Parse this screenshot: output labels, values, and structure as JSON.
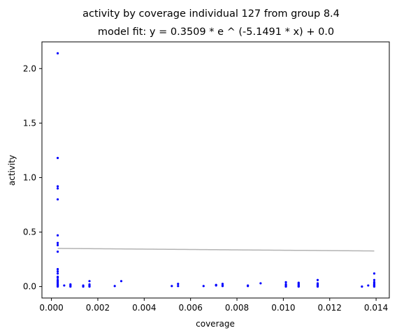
{
  "chart_data": {
    "type": "scatter",
    "title": "activity by coverage individual 127 from group 8.4",
    "subtitle": "model fit: y = 0.3509 * e ^ (-5.1491 * x) + 0.0",
    "xlabel": "coverage",
    "ylabel": "activity",
    "xlim": [
      -0.00041,
      0.01457
    ],
    "ylim": [
      -0.105,
      2.245
    ],
    "x_ticks": [
      0.0,
      0.002,
      0.004,
      0.006,
      0.008,
      0.01,
      0.012,
      0.014
    ],
    "x_tick_labels": [
      "0.000",
      "0.002",
      "0.004",
      "0.006",
      "0.008",
      "0.010",
      "0.012",
      "0.014"
    ],
    "y_ticks": [
      0.0,
      0.5,
      1.0,
      1.5,
      2.0
    ],
    "y_tick_labels": [
      "0.0",
      "0.5",
      "1.0",
      "1.5",
      "2.0"
    ],
    "grid": false,
    "colors": {
      "points": "#0000ff",
      "fit": "#b3b3b3"
    },
    "fit": {
      "a": 0.3509,
      "b": -5.1491,
      "c": 0.0,
      "x_range": [
        0.00027,
        0.01392
      ]
    },
    "points": [
      [
        0.00027,
        2.14
      ],
      [
        0.00027,
        1.18
      ],
      [
        0.00027,
        0.92
      ],
      [
        0.00027,
        0.9
      ],
      [
        0.00027,
        0.8
      ],
      [
        0.00027,
        0.47
      ],
      [
        0.00027,
        0.4
      ],
      [
        0.00027,
        0.38
      ],
      [
        0.00027,
        0.32
      ],
      [
        0.00027,
        0.16
      ],
      [
        0.00027,
        0.14
      ],
      [
        0.00027,
        0.12
      ],
      [
        0.00027,
        0.09
      ],
      [
        0.00027,
        0.08
      ],
      [
        0.00027,
        0.06
      ],
      [
        0.00027,
        0.05
      ],
      [
        0.00027,
        0.04
      ],
      [
        0.00027,
        0.03
      ],
      [
        0.00027,
        0.02
      ],
      [
        0.00027,
        0.015
      ],
      [
        0.00027,
        0.01
      ],
      [
        0.00027,
        0.005
      ],
      [
        0.00027,
        0.0
      ],
      [
        0.00055,
        0.01
      ],
      [
        0.00082,
        0.02
      ],
      [
        0.00082,
        0.01
      ],
      [
        0.00082,
        0.0
      ],
      [
        0.00137,
        0.01
      ],
      [
        0.00137,
        0.0
      ],
      [
        0.00164,
        0.05
      ],
      [
        0.00164,
        0.02
      ],
      [
        0.00164,
        0.01
      ],
      [
        0.00164,
        0.005
      ],
      [
        0.00164,
        0.0
      ],
      [
        0.00273,
        0.005
      ],
      [
        0.00301,
        0.05
      ],
      [
        0.00519,
        0.005
      ],
      [
        0.00546,
        0.025
      ],
      [
        0.00546,
        0.005
      ],
      [
        0.00656,
        0.005
      ],
      [
        0.0071,
        0.015
      ],
      [
        0.0071,
        0.01
      ],
      [
        0.00738,
        0.025
      ],
      [
        0.00738,
        0.01
      ],
      [
        0.00738,
        0.005
      ],
      [
        0.00847,
        0.01
      ],
      [
        0.00847,
        0.005
      ],
      [
        0.00902,
        0.03
      ],
      [
        0.01011,
        0.04
      ],
      [
        0.01011,
        0.02
      ],
      [
        0.01011,
        0.01
      ],
      [
        0.01011,
        0.005
      ],
      [
        0.01011,
        0.0
      ],
      [
        0.01066,
        0.035
      ],
      [
        0.01066,
        0.025
      ],
      [
        0.01066,
        0.015
      ],
      [
        0.01066,
        0.005
      ],
      [
        0.01066,
        0.0
      ],
      [
        0.01148,
        0.06
      ],
      [
        0.01148,
        0.03
      ],
      [
        0.01148,
        0.02
      ],
      [
        0.01148,
        0.01
      ],
      [
        0.01148,
        0.005
      ],
      [
        0.01148,
        0.0
      ],
      [
        0.01339,
        0.0
      ],
      [
        0.01366,
        0.01
      ],
      [
        0.01392,
        0.12
      ],
      [
        0.01392,
        0.06
      ],
      [
        0.01392,
        0.04
      ],
      [
        0.01392,
        0.03
      ],
      [
        0.01392,
        0.02
      ],
      [
        0.01392,
        0.015
      ],
      [
        0.01392,
        0.01
      ],
      [
        0.01392,
        0.005
      ],
      [
        0.01392,
        0.0
      ]
    ]
  }
}
